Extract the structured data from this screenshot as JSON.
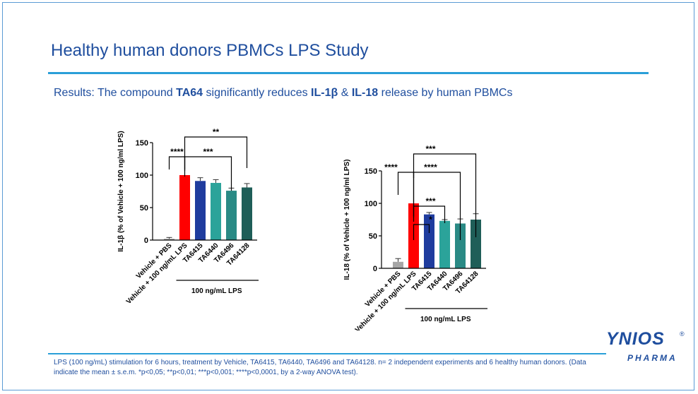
{
  "slide": {
    "title": "Healthy human donors PBMCs LPS Study",
    "subtitle_parts": [
      "Results: The compound ",
      "TA64",
      " significantly reduces ",
      "IL-1β",
      " & ",
      "IL-18",
      " release by human PBMCs"
    ],
    "footnote": "LPS (100 ng/mL) stimulation for 6 hours, treatment by Vehicle, TA6415, TA6440, TA6496 and TA64128. n= 2 independent experiments and 6 healthy human donors. (Data indicate the mean ± s.e.m. *p<0,05; **p<0,01; ***p<0,001; ****p<0,0001, by a 2-way ANOVA test).",
    "logo": {
      "main": "YNIOS",
      "reg": "®",
      "sub": "PHARMA"
    }
  },
  "colors": {
    "title": "#1f4e9e",
    "rule": "#2a9fd8"
  },
  "chart_data": [
    {
      "type": "bar",
      "ylabel": "IL-1β (% of Vehicle + 100 ng/ml LPS)",
      "ylim": [
        0,
        150
      ],
      "yticks": [
        "0",
        "50",
        "100",
        "150"
      ],
      "categories": [
        "Vehicle + PBS",
        "Vehicle + 100 ng/mL LPS",
        "TA6415",
        "TA6440",
        "TA6496",
        "TA64128"
      ],
      "values": [
        2,
        100,
        91,
        88,
        76,
        81
      ],
      "errors": [
        2,
        0,
        5,
        5,
        4,
        6
      ],
      "colors": [
        "#a6a6a6",
        "#ff0000",
        "#1f3c9e",
        "#2ba39a",
        "#2a8a85",
        "#1f5e58"
      ],
      "group_label": "100 ng/mL LPS",
      "significance": [
        {
          "label": "****",
          "from": 0,
          "to": 1
        },
        {
          "label": "***",
          "from": 1,
          "to": 4
        },
        {
          "label": "**",
          "from": 1,
          "to": 5
        }
      ]
    },
    {
      "type": "bar",
      "ylabel": "IL-18 (% of Vehicle + 100 ng/ml LPS)",
      "ylim": [
        0,
        150
      ],
      "yticks": [
        "0",
        "50",
        "100",
        "150"
      ],
      "categories": [
        "Vehicle + PBS",
        "Vehicle + 100 ng/mL LPS",
        "TA6415",
        "TA6440",
        "TA6496",
        "TA64128"
      ],
      "values": [
        10,
        100,
        83,
        73,
        69,
        75
      ],
      "errors": [
        5,
        0,
        3,
        2,
        7,
        9
      ],
      "colors": [
        "#a6a6a6",
        "#ff0000",
        "#1f3c9e",
        "#2ba39a",
        "#2a8a85",
        "#1f5e58"
      ],
      "group_label": "100 ng/mL LPS",
      "significance": [
        {
          "label": "****",
          "from": 0,
          "to": 1
        },
        {
          "label": "*",
          "from": 1,
          "to": 2
        },
        {
          "label": "***",
          "from": 1,
          "to": 3
        },
        {
          "label": "****",
          "from": 1,
          "to": 4
        },
        {
          "label": "***",
          "from": 1,
          "to": 5
        }
      ]
    }
  ]
}
